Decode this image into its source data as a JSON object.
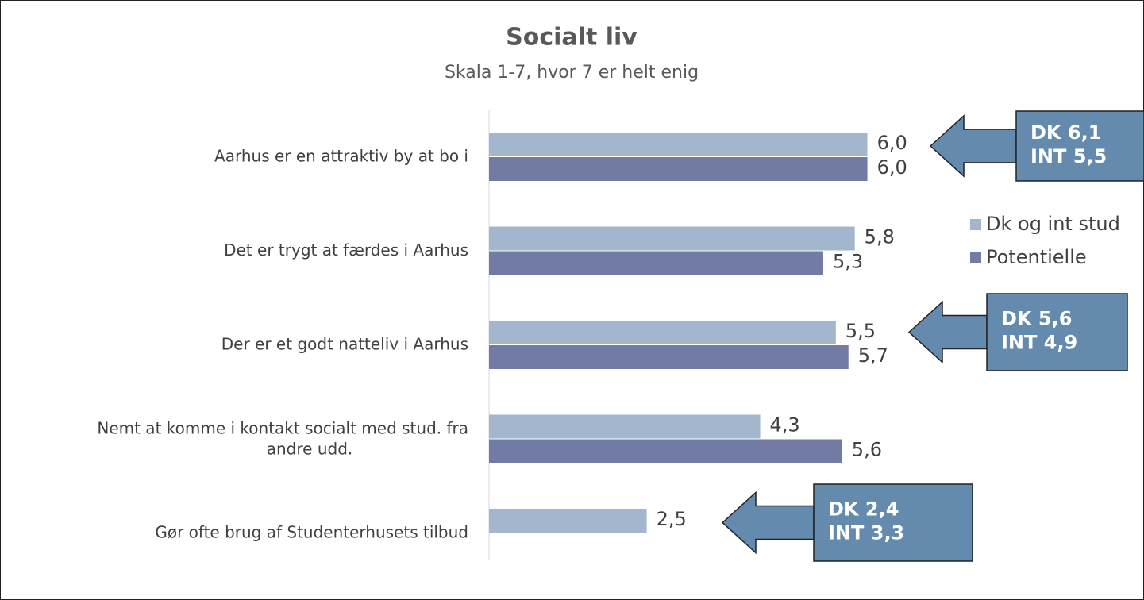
{
  "chart_data": {
    "type": "bar",
    "orientation": "horizontal",
    "title": "Socialt liv",
    "subtitle": "Skala 1-7, hvor 7 er helt enig",
    "categories": [
      "Aarhus er en attraktiv by at bo i",
      "Det er trygt at færdes i Aarhus",
      "Der er et godt natteliv i Aarhus",
      "Nemt at komme i kontakt socialt med stud. fra andre udd.",
      "Gør ofte brug af Studenterhusets tilbud"
    ],
    "series": [
      {
        "name": "Dk og int stud",
        "color": "#a2b7cd",
        "values": [
          6.0,
          5.8,
          5.5,
          4.3,
          2.5
        ],
        "value_labels": [
          "6,0",
          "5,8",
          "5,5",
          "4,3",
          "2,5"
        ]
      },
      {
        "name": "Potentielle",
        "color": "#727ba3",
        "values": [
          6.0,
          5.3,
          5.7,
          5.6,
          null
        ],
        "value_labels": [
          "6,0",
          "5,3",
          "5,7",
          "5,6",
          null
        ]
      }
    ],
    "xlim": [
      0,
      10.5
    ],
    "legend": "right",
    "annotations": [
      [
        "DK 6,1",
        "INT 5,5"
      ],
      [
        "DK 5,6",
        "INT 4,9"
      ],
      [
        "DK 2,4",
        "INT 3,3"
      ]
    ]
  }
}
